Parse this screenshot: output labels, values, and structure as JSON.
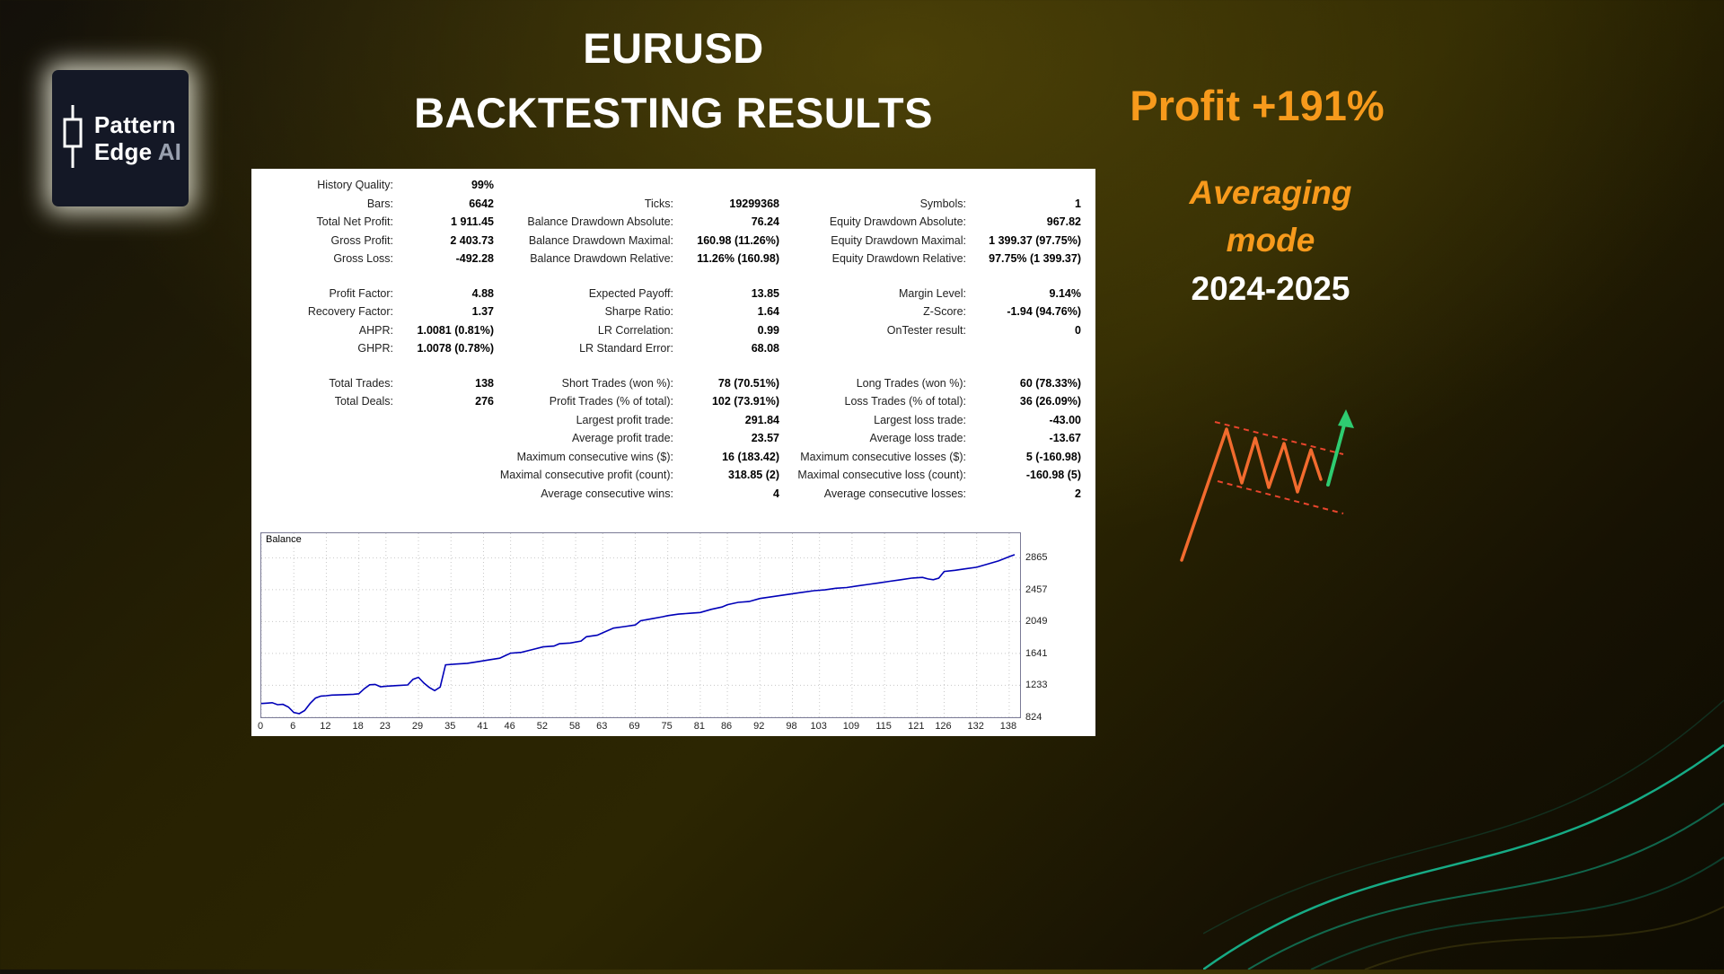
{
  "logo": {
    "line1": "Pattern",
    "line2": "Edge ",
    "suffix": "AI"
  },
  "header": {
    "title_line1": "EURUSD",
    "title_line2": "BACKTESTING RESULTS"
  },
  "side": {
    "profit": "Profit +191%",
    "mode_line1": "Averaging",
    "mode_line2": "mode",
    "years": "2024-2025"
  },
  "colors": {
    "accent_orange": "#F79A1C",
    "chart_line": "#0000B8",
    "grid_gray": "#c8c8c8",
    "teal": "#17c79c",
    "red_dashed": "#e8452c",
    "green_arrow": "#2ecc71"
  },
  "report": {
    "rows": [
      {
        "cells": [
          "History Quality:",
          "99%",
          "",
          "",
          "",
          ""
        ]
      },
      {
        "cells": [
          "Bars:",
          "6642",
          "Ticks:",
          "19299368",
          "Symbols:",
          "1"
        ]
      },
      {
        "cells": [
          "Total Net Profit:",
          "1 911.45",
          "Balance Drawdown Absolute:",
          "76.24",
          "Equity Drawdown Absolute:",
          "967.82"
        ]
      },
      {
        "cells": [
          "Gross Profit:",
          "2 403.73",
          "Balance Drawdown Maximal:",
          "160.98 (11.26%)",
          "Equity Drawdown Maximal:",
          "1 399.37 (97.75%)"
        ]
      },
      {
        "cells": [
          "Gross Loss:",
          "-492.28",
          "Balance Drawdown Relative:",
          "11.26% (160.98)",
          "Equity Drawdown Relative:",
          "97.75% (1 399.37)"
        ]
      },
      {
        "spacer": true
      },
      {
        "cells": [
          "Profit Factor:",
          "4.88",
          "Expected Payoff:",
          "13.85",
          "Margin Level:",
          "9.14%"
        ]
      },
      {
        "cells": [
          "Recovery Factor:",
          "1.37",
          "Sharpe Ratio:",
          "1.64",
          "Z-Score:",
          "-1.94 (94.76%)"
        ]
      },
      {
        "cells": [
          "AHPR:",
          "1.0081 (0.81%)",
          "LR Correlation:",
          "0.99",
          "OnTester result:",
          "0"
        ]
      },
      {
        "cells": [
          "GHPR:",
          "1.0078 (0.78%)",
          "LR Standard Error:",
          "68.08",
          "",
          ""
        ]
      },
      {
        "spacer": true
      },
      {
        "cells": [
          "Total Trades:",
          "138",
          "Short Trades (won %):",
          "78 (70.51%)",
          "Long Trades (won %):",
          "60 (78.33%)"
        ]
      },
      {
        "cells": [
          "Total Deals:",
          "276",
          "Profit Trades (% of total):",
          "102 (73.91%)",
          "Loss Trades (% of total):",
          "36 (26.09%)"
        ]
      },
      {
        "cells": [
          "",
          "",
          "Largest profit trade:",
          "291.84",
          "Largest loss trade:",
          "-43.00"
        ]
      },
      {
        "cells": [
          "",
          "",
          "Average profit trade:",
          "23.57",
          "Average loss trade:",
          "-13.67"
        ]
      },
      {
        "cells": [
          "",
          "",
          "Maximum consecutive wins ($):",
          "16 (183.42)",
          "Maximum consecutive losses ($):",
          "5 (-160.98)"
        ]
      },
      {
        "cells": [
          "",
          "",
          "Maximal consecutive profit (count):",
          "318.85 (2)",
          "Maximal consecutive loss (count):",
          "-160.98 (5)"
        ]
      },
      {
        "cells": [
          "",
          "",
          "Average consecutive wins:",
          "4",
          "Average consecutive losses:",
          "2"
        ]
      }
    ]
  },
  "chart_data": {
    "type": "line",
    "title": "Balance",
    "series": [
      {
        "name": "Balance"
      }
    ],
    "xlim": [
      0,
      140
    ],
    "ylim": [
      824,
      3180
    ],
    "x_ticks": [
      0,
      6,
      12,
      18,
      23,
      29,
      35,
      41,
      46,
      52,
      58,
      63,
      69,
      75,
      81,
      86,
      92,
      98,
      103,
      109,
      115,
      121,
      126,
      132,
      138
    ],
    "y_ticks": [
      824,
      1233,
      1641,
      2049,
      2457,
      2865
    ],
    "grid": true,
    "points": [
      [
        0,
        1000
      ],
      [
        1,
        1005
      ],
      [
        2,
        1010
      ],
      [
        3,
        985
      ],
      [
        4,
        990
      ],
      [
        5,
        955
      ],
      [
        6,
        885
      ],
      [
        7,
        870
      ],
      [
        8,
        910
      ],
      [
        9,
        1000
      ],
      [
        10,
        1070
      ],
      [
        11,
        1095
      ],
      [
        12,
        1100
      ],
      [
        13,
        1108
      ],
      [
        15,
        1112
      ],
      [
        17,
        1118
      ],
      [
        18,
        1125
      ],
      [
        19,
        1190
      ],
      [
        20,
        1240
      ],
      [
        21,
        1245
      ],
      [
        22,
        1215
      ],
      [
        23,
        1222
      ],
      [
        25,
        1230
      ],
      [
        27,
        1238
      ],
      [
        28,
        1310
      ],
      [
        29,
        1335
      ],
      [
        30,
        1262
      ],
      [
        31,
        1205
      ],
      [
        32,
        1165
      ],
      [
        33,
        1210
      ],
      [
        34,
        1495
      ],
      [
        36,
        1505
      ],
      [
        38,
        1515
      ],
      [
        40,
        1535
      ],
      [
        42,
        1558
      ],
      [
        44,
        1580
      ],
      [
        45,
        1612
      ],
      [
        46,
        1645
      ],
      [
        48,
        1655
      ],
      [
        50,
        1690
      ],
      [
        52,
        1725
      ],
      [
        54,
        1735
      ],
      [
        55,
        1765
      ],
      [
        57,
        1775
      ],
      [
        59,
        1800
      ],
      [
        60,
        1855
      ],
      [
        62,
        1875
      ],
      [
        63,
        1905
      ],
      [
        65,
        1965
      ],
      [
        67,
        1985
      ],
      [
        69,
        2005
      ],
      [
        70,
        2060
      ],
      [
        72,
        2085
      ],
      [
        74,
        2110
      ],
      [
        75,
        2125
      ],
      [
        77,
        2145
      ],
      [
        79,
        2155
      ],
      [
        81,
        2165
      ],
      [
        83,
        2205
      ],
      [
        85,
        2235
      ],
      [
        86,
        2265
      ],
      [
        88,
        2295
      ],
      [
        90,
        2305
      ],
      [
        92,
        2345
      ],
      [
        94,
        2365
      ],
      [
        96,
        2385
      ],
      [
        98,
        2405
      ],
      [
        100,
        2425
      ],
      [
        102,
        2445
      ],
      [
        104,
        2455
      ],
      [
        106,
        2475
      ],
      [
        108,
        2485
      ],
      [
        110,
        2505
      ],
      [
        112,
        2525
      ],
      [
        114,
        2545
      ],
      [
        116,
        2565
      ],
      [
        118,
        2585
      ],
      [
        120,
        2605
      ],
      [
        122,
        2615
      ],
      [
        123,
        2595
      ],
      [
        124,
        2585
      ],
      [
        125,
        2605
      ],
      [
        126,
        2690
      ],
      [
        128,
        2705
      ],
      [
        130,
        2725
      ],
      [
        132,
        2745
      ],
      [
        134,
        2785
      ],
      [
        136,
        2825
      ],
      [
        138,
        2880
      ],
      [
        139,
        2905
      ]
    ]
  }
}
